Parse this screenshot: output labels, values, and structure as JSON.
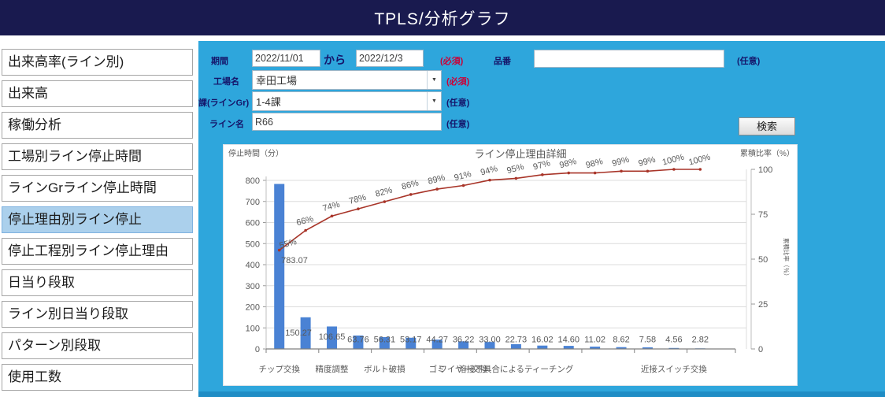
{
  "header": {
    "title": "TPLS/分析グラフ"
  },
  "sidebar": {
    "items": [
      {
        "label": "出来高率(ライン別)",
        "selected": false
      },
      {
        "label": "出来高",
        "selected": false
      },
      {
        "label": "稼働分析",
        "selected": false
      },
      {
        "label": "工場別ライン停止時間",
        "selected": false
      },
      {
        "label": "ラインGrライン停止時間",
        "selected": false
      },
      {
        "label": "停止理由別ライン停止",
        "selected": true
      },
      {
        "label": "停止工程別ライン停止理由",
        "selected": false
      },
      {
        "label": "日当り段取",
        "selected": false
      },
      {
        "label": "ライン別日当り段取",
        "selected": false
      },
      {
        "label": "パターン別段取",
        "selected": false
      },
      {
        "label": "使用工数",
        "selected": false
      }
    ]
  },
  "form": {
    "period": {
      "label": "期間",
      "from": "2022/11/01",
      "separator": "から",
      "to": "2022/12/3",
      "requirement": "(必須)"
    },
    "part_no": {
      "label": "品番",
      "value": "",
      "requirement": "(任意)"
    },
    "factory": {
      "label": "工場名",
      "value": "幸田工場",
      "requirement": "(必須)"
    },
    "line_gr": {
      "label": "課(ラインGr)",
      "value": "1-4課",
      "requirement": "(任意)"
    },
    "line_name": {
      "label": "ライン名",
      "value": "R66",
      "requirement": "(任意)"
    },
    "search_button": "検索"
  },
  "chart_data": {
    "type": "pareto",
    "title": "ライン停止理由詳細",
    "left_axis": {
      "title": "停止時間（分）",
      "min": 0,
      "max": 800,
      "step": 100
    },
    "right_axis": {
      "title": "累積比率（%）",
      "rotated_title": "累積比率（％）",
      "min": 0,
      "max": 100,
      "ticks": [
        0,
        25,
        50,
        75,
        100
      ]
    },
    "values": [
      783.07,
      150.27,
      106.65,
      63.76,
      56.31,
      53.17,
      44.27,
      36.22,
      33.0,
      22.73,
      16.02,
      14.6,
      11.02,
      8.62,
      7.58,
      4.56,
      2.82
    ],
    "cumulative_pct": [
      55,
      66,
      74,
      78,
      82,
      86,
      89,
      91,
      94,
      95,
      97,
      98,
      98,
      99,
      99,
      100,
      100
    ],
    "x_tick_labels": [
      {
        "index": 0,
        "label": "チップ交換"
      },
      {
        "index": 2,
        "label": "精度調整"
      },
      {
        "index": 4,
        "label": "ボルト破損"
      },
      {
        "index": 6,
        "label": "ゴミ"
      },
      {
        "index": 7,
        "label": "ワイヤー交換"
      },
      {
        "index": 9,
        "label": "溶接不具合によるティーチング"
      },
      {
        "index": 15,
        "label": "近接スイッチ交換"
      }
    ],
    "legend": "none",
    "grid": true,
    "bar_color": "#4a82d4",
    "line_color": "#a83428",
    "label_color": "#595959"
  }
}
